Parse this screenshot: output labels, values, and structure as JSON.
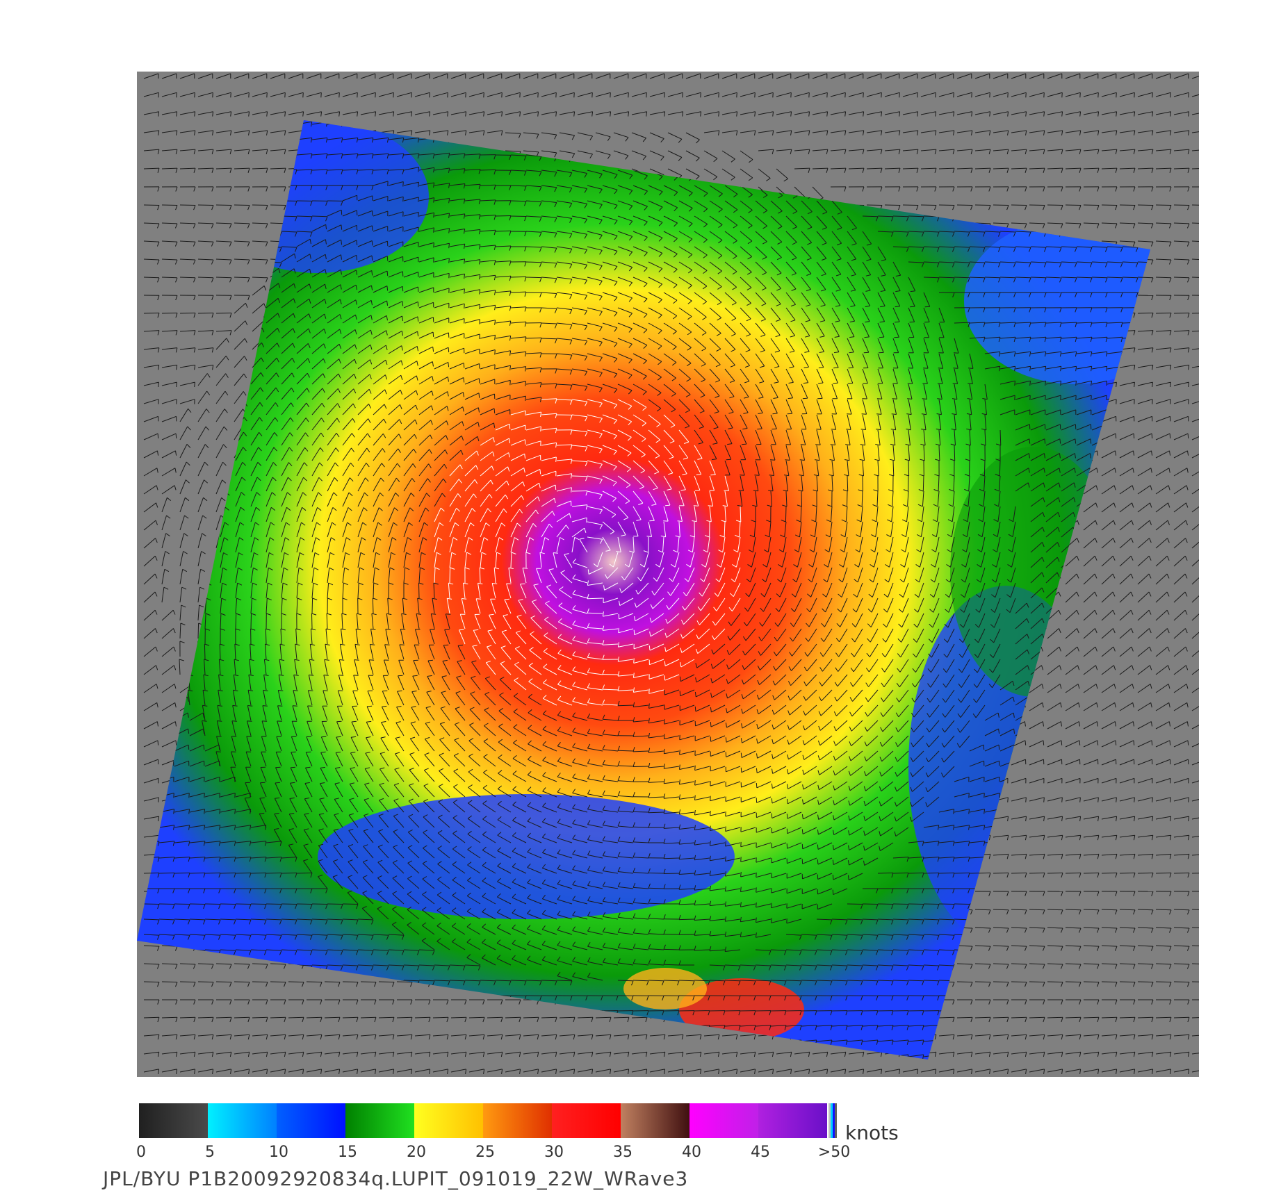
{
  "map": {
    "background_color": "#808080",
    "swath_colors": [
      "#1e40ff",
      "#0a9a0a",
      "#2ad21a",
      "#ffee1a",
      "#ffc21a",
      "#ff7a10",
      "#ff2a10",
      "#d200e8",
      "#8a10c8",
      "#f2c8c8"
    ]
  },
  "colorbar": {
    "units": "knots",
    "ticks": [
      "0",
      "5",
      "10",
      "15",
      "20",
      "25",
      "30",
      "35",
      "40",
      "45",
      ">50"
    ],
    "segments": [
      {
        "from": "#202020",
        "to": "#4a4a4a"
      },
      {
        "from": "#00f0ff",
        "to": "#0080ff"
      },
      {
        "from": "#0060ff",
        "to": "#0010ff"
      },
      {
        "from": "#008000",
        "to": "#20e020"
      },
      {
        "from": "#ffff20",
        "to": "#ffc000"
      },
      {
        "from": "#ff9a10",
        "to": "#e03000"
      },
      {
        "from": "#ff2020",
        "to": "#ff0000"
      },
      {
        "from": "#c08060",
        "to": "#401010"
      },
      {
        "from": "#ff00ff",
        "to": "#c020e8"
      },
      {
        "from": "#b020e0",
        "to": "#6a10c8"
      }
    ]
  },
  "footer": {
    "label": "JPL/BYU  P1B20092920834q.LUPIT_091019_22W_WRave3"
  }
}
